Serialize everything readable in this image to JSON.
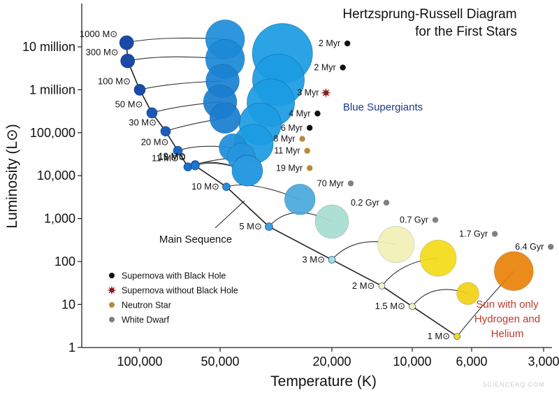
{
  "chart_data": {
    "type": "scatter",
    "title": "Hertzsprung-Russell Diagram",
    "subtitle": "for the First  Stars",
    "xlabel": "Temperature (K)",
    "ylabel": "Luminosity (L⊙)",
    "x_scale": "log-reversed",
    "y_scale": "log",
    "x_ticks": [
      {
        "value": 100000,
        "label": "100,000"
      },
      {
        "value": 50000,
        "label": "50,000"
      },
      {
        "value": 20000,
        "label": "20,000"
      },
      {
        "value": 10000,
        "label": "10,000"
      },
      {
        "value": 6000,
        "label": "6,000"
      },
      {
        "value": 3000,
        "label": "3,000"
      }
    ],
    "y_ticks": [
      {
        "value": 10000000,
        "label": "10 million"
      },
      {
        "value": 1000000,
        "label": "1 million"
      },
      {
        "value": 100000,
        "label": "100,000"
      },
      {
        "value": 10000,
        "label": "10,000"
      },
      {
        "value": 1000,
        "label": "1,000"
      },
      {
        "value": 100,
        "label": "100"
      },
      {
        "value": 10,
        "label": "10"
      },
      {
        "value": 1,
        "label": "1"
      }
    ],
    "main_sequence_label": "Main Sequence",
    "series": [
      {
        "name": "Supernova with Black Hole",
        "color": "#111111",
        "marker": "dot"
      },
      {
        "name": "Supernova without  Black Hole",
        "color": "#8b1a1a",
        "marker": "star"
      },
      {
        "name": "Neutron Star",
        "color": "#b8893a",
        "marker": "dot"
      },
      {
        "name": "White Dwarf",
        "color": "#808080",
        "marker": "dot"
      }
    ],
    "stars": [
      {
        "mass": "1000 M⊙",
        "ms_temp": 112000,
        "ms_lum": 12500000,
        "end_temp": 48000,
        "end_lum": 15000000,
        "end_color": "#1e8fdc",
        "fate_age": "2 Myr",
        "fate_temp": 17500,
        "fate_lum": 12000000,
        "fate": "Supernova with Black Hole"
      },
      {
        "mass": "300 M⊙",
        "ms_temp": 111000,
        "ms_lum": 4700000,
        "end_temp": 48000,
        "end_lum": 5200000,
        "end_color": "#1c8ad8",
        "fate_age": "2 Myr",
        "fate_temp": 18200,
        "fate_lum": 3300000,
        "fate": "Supernova with Black Hole"
      },
      {
        "mass": "100 M⊙",
        "ms_temp": 100000,
        "ms_lum": 1000000,
        "end_temp": 49000,
        "end_lum": 1600000,
        "end_color": "#1a82d2",
        "fate_age": "3 Myr",
        "fate_temp": 21000,
        "fate_lum": 850000,
        "fate": "Supernova without  Black Hole"
      },
      {
        "mass": "50 M⊙",
        "ms_temp": 90000,
        "ms_lum": 290000,
        "end_temp": 50000,
        "end_lum": 520000,
        "end_color": "#1a7ecf",
        "fate_age": "4 Myr",
        "fate_temp": 22500,
        "fate_lum": 280000,
        "fate": "Supernova with Black Hole"
      },
      {
        "mass": "30 M⊙",
        "ms_temp": 80000,
        "ms_lum": 108000,
        "end_temp": 48000,
        "end_lum": 220000,
        "end_color": "#1a7ecf",
        "fate_age": "6 Myr",
        "fate_temp": 24000,
        "fate_lum": 130000,
        "fate": "Supernova with Black Hole"
      },
      {
        "mass": "20 M⊙",
        "ms_temp": 72000,
        "ms_lum": 38000,
        "end_temp": 45000,
        "end_lum": 45000,
        "end_color": "#1f8fdc",
        "fate_age": "8 Myr",
        "fate_temp": 25500,
        "fate_lum": 72000,
        "fate": "Neutron Star"
      },
      {
        "mass": "11 M⊙",
        "ms_temp": 66000,
        "ms_lum": 16000,
        "end_temp": 42000,
        "end_lum": 27000,
        "end_color": "#2596de",
        "fate_age": "11 Myr",
        "fate_temp": 24500,
        "fate_lum": 38000,
        "fate": "Neutron Star"
      },
      {
        "mass": "19 M⊙",
        "ms_temp": 62000,
        "ms_lum": 18000,
        "end_temp": 40000,
        "end_lum": 13000,
        "end_color": "#2a9be0",
        "fate_age": "19 Myr",
        "fate_temp": 24000,
        "fate_lum": 15000,
        "fate": "Neutron Star"
      },
      {
        "mass": "15 M⊙",
        "ms_temp": 62000,
        "ms_lum": 17000,
        "end_temp": 40000,
        "end_lum": 13000,
        "end_color": "#2a9be0",
        "fate_age": "",
        "fate_temp": null,
        "fate_lum": null,
        "fate": ""
      },
      {
        "mass": "10 M⊙",
        "ms_temp": 47500,
        "ms_lum": 5500,
        "end_temp": 26000,
        "end_lum": 2800,
        "end_color": "#4aa9dc",
        "fate_age": "70 Myr",
        "fate_temp": 17000,
        "fate_lum": 6600,
        "fate": "White Dwarf"
      },
      {
        "mass": "5 M⊙",
        "ms_temp": 33500,
        "ms_lum": 650,
        "end_temp": 20000,
        "end_lum": 850,
        "end_color": "#a8ddd2",
        "fate_age": "0.2 Gyr",
        "fate_temp": 12500,
        "fate_lum": 2350,
        "fate": "White Dwarf"
      },
      {
        "mass": "3 M⊙",
        "ms_temp": 20000,
        "ms_lum": 110,
        "end_temp": 11500,
        "end_lum": 250,
        "end_color": "#f3f1b6",
        "fate_age": "0.7 Gyr",
        "fate_temp": 8200,
        "fate_lum": 930,
        "fate": "White Dwarf"
      },
      {
        "mass": "2 M⊙",
        "ms_temp": 13000,
        "ms_lum": 27,
        "end_temp": 8000,
        "end_lum": 120,
        "end_color": "#f5dc1a",
        "fate_age": "1.7 Gyr",
        "fate_temp": 4800,
        "fate_lum": 440,
        "fate": "White Dwarf"
      },
      {
        "mass": "1.5 M⊙",
        "ms_temp": 10000,
        "ms_lum": 9,
        "end_temp": 6200,
        "end_lum": 18,
        "end_color": "#f2d217",
        "fate_age": "6.4 Gyr",
        "fate_temp": 2800,
        "fate_lum": 220,
        "fate": "White Dwarf"
      },
      {
        "mass": "1 M⊙",
        "ms_temp": 6800,
        "ms_lum": 1.8,
        "end_temp": 4000,
        "end_lum": 60,
        "end_color": "#e9830b",
        "fate_age": "",
        "fate_temp": null,
        "fate_lum": null,
        "fate": ""
      }
    ],
    "region_labels": [
      {
        "text": "Blue Supergiants",
        "color": "#1b3a8c"
      },
      {
        "text": "Sun with only",
        "color": "#c0392b"
      },
      {
        "text": "Hydrogen and",
        "color": "#c0392b"
      },
      {
        "text": "Helium",
        "color": "#c0392b"
      }
    ],
    "watermark": "SCIENCEAQ.COM",
    "grid": false,
    "legend_position": "bottom-left"
  }
}
